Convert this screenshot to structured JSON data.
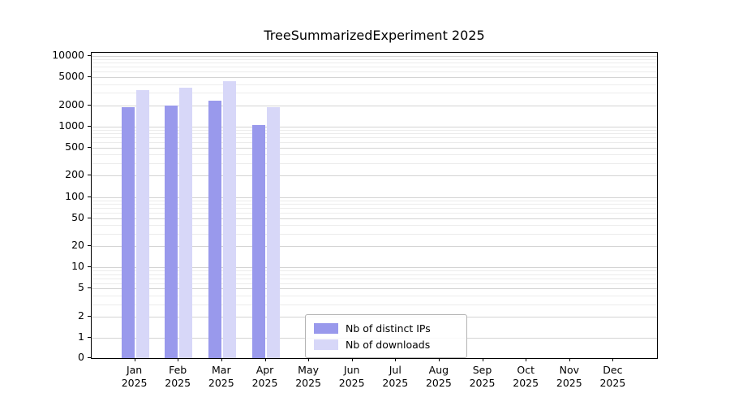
{
  "chart_data": {
    "type": "bar",
    "title": "TreeSummarizedExperiment 2025",
    "year": "2025",
    "categories": [
      "Jan",
      "Feb",
      "Mar",
      "Apr",
      "May",
      "Jun",
      "Jul",
      "Aug",
      "Sep",
      "Oct",
      "Nov",
      "Dec"
    ],
    "series": [
      {
        "name": "Nb of distinct IPs",
        "color": "#9999ec",
        "values": [
          1900,
          2000,
          2300,
          1050,
          0,
          0,
          0,
          0,
          0,
          0,
          0,
          0
        ]
      },
      {
        "name": "Nb of downloads",
        "color": "#d7d7f8",
        "values": [
          3300,
          3600,
          4400,
          1900,
          0,
          0,
          0,
          0,
          0,
          0,
          0,
          0
        ]
      }
    ],
    "yscale": "symlog",
    "yticks": [
      0,
      1,
      2,
      5,
      10,
      20,
      50,
      100,
      200,
      500,
      1000,
      2000,
      5000,
      10000
    ],
    "ylim": [
      0,
      10000
    ],
    "grid": true,
    "legend_position": "bottom-center",
    "colors": {
      "axis": "#000000",
      "grid_major": "#d4d4d4",
      "grid_minor": "#ececec",
      "background": "#ffffff"
    }
  }
}
